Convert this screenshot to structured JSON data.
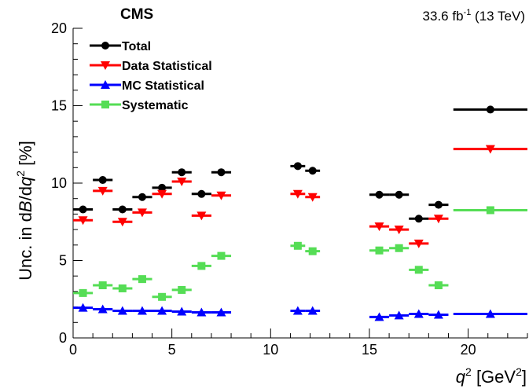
{
  "header": {
    "experiment": "CMS",
    "luminosity": "33.6 fb",
    "luminosity_exp": "-1",
    "energy": " (13 TeV)"
  },
  "axes": {
    "x_title_var": "q",
    "x_title_pow": "2",
    "x_title_unit": " [GeV",
    "x_title_unit_pow": "2",
    "x_title_close": "]",
    "y_title_a": "Unc. in d",
    "y_title_b": "B",
    "y_title_c": "/d",
    "y_title_d": "q",
    "y_title_e": "2",
    "y_title_f": " [%]"
  },
  "chart_data": {
    "type": "scatter",
    "xlim": [
      0,
      23
    ],
    "ylim": [
      0,
      20
    ],
    "x_ticks": [
      0,
      5,
      10,
      15,
      20
    ],
    "y_ticks": [
      0,
      5,
      10,
      15,
      20
    ],
    "grid": false,
    "legend_position": "top-left",
    "bins": [
      [
        0,
        1
      ],
      [
        1,
        2
      ],
      [
        2,
        3
      ],
      [
        3,
        4
      ],
      [
        4,
        5
      ],
      [
        5,
        6
      ],
      [
        6,
        7
      ],
      [
        7,
        8
      ],
      [
        11,
        11.75
      ],
      [
        11.75,
        12.5
      ],
      [
        15,
        16
      ],
      [
        16,
        17
      ],
      [
        17,
        18
      ],
      [
        18,
        19
      ],
      [
        19.25,
        23
      ]
    ],
    "x": [
      0.5,
      1.5,
      2.5,
      3.5,
      4.5,
      5.5,
      6.5,
      7.5,
      11.375,
      12.125,
      15.5,
      16.5,
      17.5,
      18.5,
      21.125
    ],
    "series": [
      {
        "name": "Total",
        "color": "#000000",
        "marker": "circle",
        "values": [
          8.3,
          10.2,
          8.3,
          9.1,
          9.7,
          10.7,
          9.3,
          10.7,
          11.1,
          10.8,
          9.25,
          9.25,
          7.7,
          8.6,
          14.75
        ]
      },
      {
        "name": "Data Statistical",
        "color": "#ff0000",
        "marker": "triangle-down",
        "values": [
          7.6,
          9.5,
          7.5,
          8.1,
          9.3,
          10.1,
          7.9,
          9.2,
          9.3,
          9.1,
          7.2,
          7.0,
          6.1,
          7.7,
          12.2
        ]
      },
      {
        "name": "MC Statistical",
        "color": "#0000ff",
        "marker": "triangle-up",
        "values": [
          1.95,
          1.85,
          1.75,
          1.75,
          1.75,
          1.7,
          1.65,
          1.65,
          1.75,
          1.75,
          1.35,
          1.45,
          1.55,
          1.5,
          1.55
        ]
      },
      {
        "name": "Systematic",
        "color": "#55dd55",
        "marker": "square",
        "values": [
          2.9,
          3.4,
          3.2,
          3.8,
          2.65,
          3.1,
          4.65,
          5.3,
          5.95,
          5.6,
          5.65,
          5.8,
          4.4,
          3.4,
          8.25
        ]
      }
    ]
  }
}
